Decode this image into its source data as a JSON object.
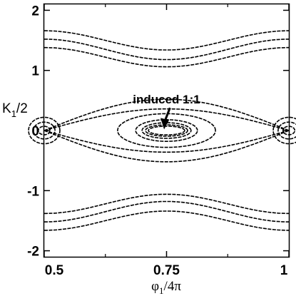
{
  "chart_data": {
    "type": "scatter",
    "title": "",
    "xlabel": {
      "main": "φ",
      "sub": "1",
      "suffix": "/4π"
    },
    "ylabel": {
      "main": "K",
      "sub": "1",
      "suffix": "/2"
    },
    "xlim": [
      0.5,
      1.0
    ],
    "ylim": [
      -2.1,
      2.1
    ],
    "x_ticks": [
      {
        "value": 0.5,
        "label": "0.5"
      },
      {
        "value": 0.75,
        "label": "0.75"
      },
      {
        "value": 1.0,
        "label": "1"
      }
    ],
    "y_ticks": [
      {
        "value": 2,
        "label": "2"
      },
      {
        "value": 1,
        "label": "1"
      },
      {
        "value": 0,
        "label": "0"
      },
      {
        "value": -1,
        "label": "-1"
      },
      {
        "value": -2,
        "label": "-2"
      }
    ],
    "grid": false,
    "legend": "none",
    "annotation": {
      "text": "induced 1:1",
      "text_at": [
        0.75,
        0.52
      ],
      "arrow_to": [
        0.745,
        0.02
      ]
    },
    "series": [
      {
        "kind": "rotational",
        "center": 1.5,
        "amp": 0.16
      },
      {
        "kind": "rotational",
        "center": 1.35,
        "amp": 0.17
      },
      {
        "kind": "rotational",
        "center": 1.22,
        "amp": 0.16
      },
      {
        "kind": "rotational",
        "center": -1.22,
        "amp": -0.16
      },
      {
        "kind": "rotational",
        "center": -1.35,
        "amp": -0.17
      },
      {
        "kind": "rotational",
        "center": -1.5,
        "amp": -0.16
      },
      {
        "kind": "separatrix",
        "amp": 0.52
      },
      {
        "kind": "separatrix",
        "amp": 0.36
      },
      {
        "kind": "libration",
        "a": 0.1,
        "b": 0.28
      },
      {
        "kind": "libration",
        "a": 0.063,
        "b": 0.18
      },
      {
        "kind": "libration",
        "a": 0.05,
        "b": 0.13
      },
      {
        "kind": "libration",
        "a": 0.043,
        "b": 0.095
      },
      {
        "kind": "libration",
        "a": 0.037,
        "b": 0.072
      },
      {
        "kind": "edge-island",
        "a": 0.032,
        "b": 0.22
      },
      {
        "kind": "edge-island",
        "a": 0.022,
        "b": 0.14
      },
      {
        "kind": "edge-island",
        "a": 0.012,
        "b": 0.07
      }
    ]
  }
}
